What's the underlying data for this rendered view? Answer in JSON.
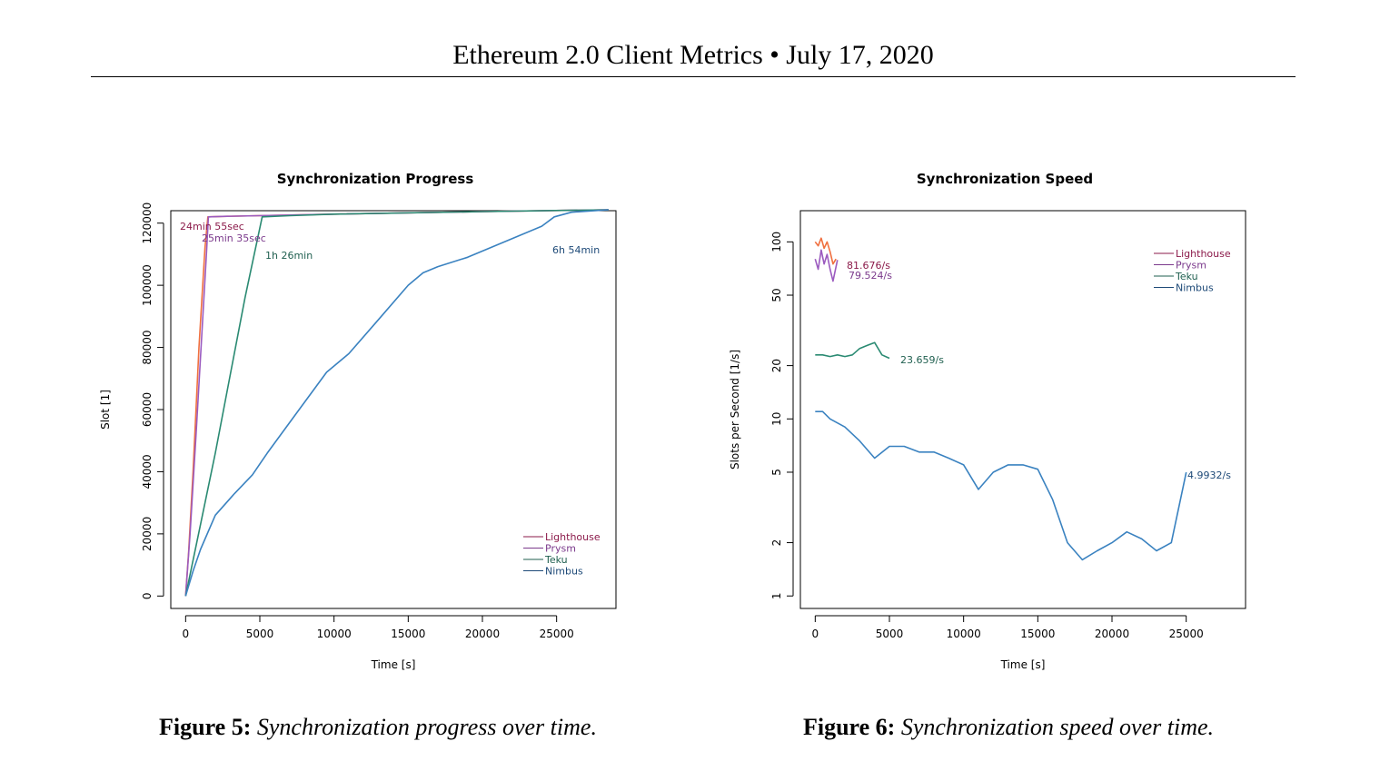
{
  "header": {
    "title": "Ethereum 2.0 Client Metrics • July 17, 2020"
  },
  "colors": {
    "Lighthouse": "#8b1a4a",
    "Prysm": "#7b3a8c",
    "Teku": "#1f5f4f",
    "Nimbus": "#1e4a78",
    "lighthouse_line": "#f07040",
    "prysm_line": "#9b5bbf",
    "teku_line": "#2a8a72",
    "nimbus_line": "#3a82c0"
  },
  "chart_data": [
    {
      "type": "line",
      "title": "Synchronization Progress",
      "xlabel": "Time [s]",
      "ylabel": "Slot [1]",
      "xlim": [
        -1000,
        29000
      ],
      "ylim": [
        -4000,
        124000
      ],
      "xticks": [
        "0",
        "5000",
        "10000",
        "15000",
        "20000",
        "25000"
      ],
      "yticks": [
        "0",
        "20000",
        "40000",
        "60000",
        "80000",
        "100000",
        "120000"
      ],
      "legend": {
        "position": "bottom-right",
        "entries": [
          "Lighthouse",
          "Prysm",
          "Teku",
          "Nimbus"
        ]
      },
      "annotations": [
        "24min 55sec",
        "25min 35sec",
        "1h 26min",
        "6h 54min"
      ],
      "series": [
        {
          "name": "Lighthouse",
          "x": [
            0,
            200,
            500,
            900,
            1300,
            1495,
            2500,
            10000,
            20000,
            28500
          ],
          "y": [
            0,
            14000,
            40000,
            80000,
            112000,
            122000,
            122150,
            122900,
            123700,
            124300
          ]
        },
        {
          "name": "Prysm",
          "x": [
            0,
            300,
            700,
            1100,
            1400,
            1535,
            2500,
            10000,
            20000,
            28500
          ],
          "y": [
            0,
            20000,
            52000,
            85000,
            110000,
            122000,
            122150,
            122900,
            123700,
            124300
          ]
        },
        {
          "name": "Teku",
          "x": [
            0,
            1000,
            2000,
            3000,
            4000,
            5160,
            7000,
            10000,
            20000,
            28500
          ],
          "y": [
            0,
            23000,
            46000,
            71000,
            96000,
            122000,
            122400,
            122900,
            123700,
            124300
          ]
        },
        {
          "name": "Nimbus",
          "x": [
            0,
            500,
            1000,
            2000,
            3300,
            4500,
            5500,
            7500,
            9500,
            11000,
            13000,
            15000,
            16000,
            17000,
            19000,
            21000,
            22500,
            24000,
            24840,
            26000,
            28500
          ],
          "y": [
            0,
            8000,
            15000,
            26000,
            33000,
            39000,
            46000,
            59000,
            72000,
            78000,
            89000,
            100000,
            104000,
            106000,
            109000,
            113000,
            116000,
            119000,
            122000,
            123500,
            124300
          ]
        }
      ]
    },
    {
      "type": "line",
      "title": "Synchronization Speed",
      "xlabel": "Time [s]",
      "ylabel": "Slots per Second [1/s]",
      "xlim": [
        -1000,
        29000
      ],
      "ylim_log": [
        0.85,
        150
      ],
      "xticks": [
        "0",
        "5000",
        "10000",
        "15000",
        "20000",
        "25000"
      ],
      "yticks": [
        "1",
        "2",
        "5",
        "10",
        "20",
        "50",
        "100"
      ],
      "legend": {
        "position": "top-right",
        "entries": [
          "Lighthouse",
          "Prysm",
          "Teku",
          "Nimbus"
        ]
      },
      "annotations": [
        "81.676/s",
        "79.524/s",
        "23.659/s",
        "4.9932/s"
      ],
      "series": [
        {
          "name": "Lighthouse",
          "x": [
            0,
            200,
            400,
            600,
            800,
            1000,
            1200,
            1400
          ],
          "y": [
            100,
            95,
            105,
            92,
            100,
            88,
            75,
            80
          ]
        },
        {
          "name": "Prysm",
          "x": [
            0,
            200,
            400,
            600,
            800,
            1000,
            1200,
            1500
          ],
          "y": [
            80,
            70,
            90,
            75,
            85,
            70,
            60,
            79
          ]
        },
        {
          "name": "Teku",
          "x": [
            0,
            500,
            1000,
            1500,
            2000,
            2500,
            3000,
            3500,
            4000,
            4500,
            5000
          ],
          "y": [
            23,
            23,
            22.5,
            23,
            22.5,
            23,
            25,
            26,
            27,
            23,
            22
          ]
        },
        {
          "name": "Nimbus",
          "x": [
            0,
            500,
            1000,
            2000,
            3000,
            4000,
            5000,
            6000,
            7000,
            8000,
            9000,
            10000,
            11000,
            12000,
            13000,
            14000,
            15000,
            16000,
            17000,
            18000,
            19000,
            20000,
            21000,
            22000,
            23000,
            24000,
            25000
          ],
          "y": [
            11,
            11,
            10,
            9,
            7.5,
            6,
            7,
            7,
            6.5,
            6.5,
            6,
            5.5,
            4,
            5,
            5.5,
            5.5,
            5.2,
            3.5,
            2,
            1.6,
            1.8,
            2,
            2.3,
            2.1,
            1.8,
            2,
            4.9932
          ]
        }
      ]
    }
  ],
  "captions": [
    {
      "label": "Figure 5:",
      "text": "Synchronization progress over time."
    },
    {
      "label": "Figure 6:",
      "text": "Synchronization speed over time."
    }
  ]
}
